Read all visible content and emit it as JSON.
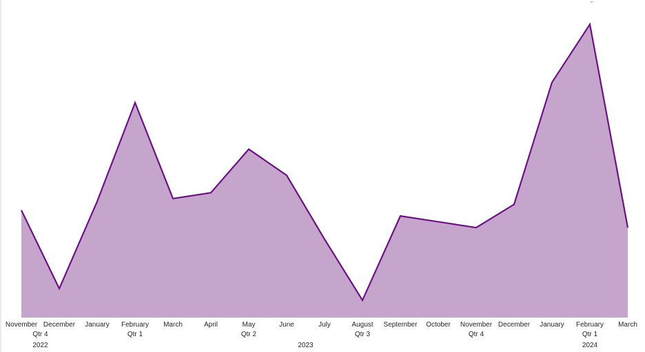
{
  "icons": {
    "visual-header-icons": "chevron-arrows-icon"
  },
  "chart_data": {
    "type": "area",
    "title": "",
    "xlabel": "",
    "ylabel": "",
    "grid": false,
    "legend": "none",
    "colors": {
      "line": "#6b1182",
      "fill": "#c6a5cd"
    },
    "categories": [
      "November",
      "December",
      "January",
      "February",
      "March",
      "April",
      "May",
      "June",
      "July",
      "August",
      "September",
      "October",
      "November",
      "December",
      "January",
      "February",
      "March"
    ],
    "quarters": [
      {
        "label": "Qtr 4",
        "start": 0,
        "end": 1
      },
      {
        "label": "Qtr 1",
        "start": 2,
        "end": 4
      },
      {
        "label": "Qtr 2",
        "start": 5,
        "end": 7
      },
      {
        "label": "Qtr 3",
        "start": 8,
        "end": 10
      },
      {
        "label": "Qtr 4",
        "start": 11,
        "end": 13
      },
      {
        "label": "Qtr 1",
        "start": 14,
        "end": 16
      }
    ],
    "years": [
      {
        "label": "2022",
        "start": 0,
        "end": 1
      },
      {
        "label": "2023",
        "start": 2,
        "end": 13
      },
      {
        "label": "2024",
        "start": 14,
        "end": 16
      }
    ],
    "values": [
      37,
      10,
      40,
      74,
      41,
      43,
      58,
      49,
      27,
      6,
      35,
      33,
      31,
      39,
      81,
      101,
      31
    ],
    "ylim": [
      0,
      107
    ]
  }
}
